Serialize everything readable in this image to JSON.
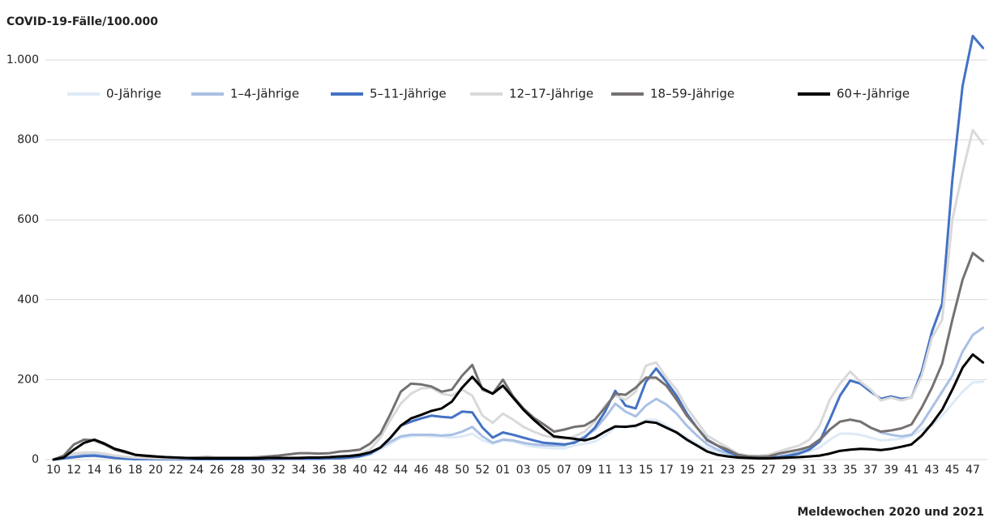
{
  "chart_data": {
    "type": "line",
    "y_label": "COVID-19-Fälle/100.000",
    "x_label": "Meldewochen 2020 und 2021",
    "categories": [
      "10",
      null,
      "12",
      null,
      "14",
      null,
      "16",
      null,
      "18",
      null,
      "20",
      null,
      "22",
      null,
      "24",
      null,
      "26",
      null,
      "28",
      null,
      "30",
      null,
      "32",
      null,
      "34",
      null,
      "36",
      null,
      "38",
      null,
      "40",
      null,
      "42",
      null,
      "44",
      null,
      "46",
      null,
      "48",
      null,
      "50",
      null,
      "52",
      null,
      "01",
      null,
      "03",
      null,
      "05",
      null,
      "07",
      null,
      "09",
      null,
      "11",
      null,
      "13",
      null,
      "15",
      null,
      "17",
      null,
      "19",
      null,
      "21",
      null,
      "23",
      null,
      "25",
      null,
      "27",
      null,
      "29",
      null,
      "31",
      null,
      "33",
      null,
      "35",
      null,
      "37",
      null,
      "39",
      null,
      "41",
      null,
      "43",
      null,
      "45",
      null,
      "47",
      null
    ],
    "ylim": [
      0,
      1000
    ],
    "yticks": [
      0,
      200,
      400,
      600,
      800,
      {
        "value": 1000,
        "label": "1.000"
      }
    ],
    "grid": true,
    "legend": "top",
    "series": [
      {
        "name": "0-Jährige",
        "color": "#deeaf6",
        "values": [
          0,
          2,
          5,
          8,
          8,
          6,
          4,
          3,
          2,
          2,
          1,
          1,
          1,
          1,
          1,
          1,
          1,
          1,
          1,
          1,
          1,
          1,
          1,
          2,
          2,
          2,
          2,
          3,
          4,
          6,
          8,
          12,
          25,
          40,
          55,
          58,
          60,
          58,
          58,
          55,
          58,
          65,
          48,
          40,
          48,
          45,
          38,
          32,
          30,
          28,
          28,
          35,
          40,
          45,
          60,
          80,
          85,
          80,
          100,
          100,
          85,
          70,
          55,
          40,
          28,
          20,
          12,
          8,
          5,
          5,
          5,
          8,
          10,
          15,
          20,
          30,
          50,
          65,
          65,
          62,
          55,
          48,
          50,
          52,
          60,
          75,
          85,
          110,
          140,
          170,
          193,
          195
        ]
      },
      {
        "name": "1–4-Jährige",
        "color": "#a9c0e4",
        "values": [
          0,
          3,
          8,
          12,
          12,
          9,
          6,
          4,
          3,
          2,
          2,
          2,
          2,
          2,
          2,
          2,
          2,
          2,
          2,
          2,
          2,
          2,
          2,
          3,
          3,
          3,
          3,
          4,
          5,
          7,
          10,
          15,
          30,
          45,
          58,
          62,
          62,
          62,
          60,
          62,
          70,
          82,
          58,
          42,
          50,
          48,
          42,
          38,
          36,
          35,
          35,
          45,
          58,
          75,
          105,
          140,
          120,
          108,
          135,
          152,
          138,
          115,
          85,
          60,
          38,
          25,
          15,
          8,
          5,
          5,
          5,
          8,
          12,
          18,
          28,
          45,
          75,
          95,
          100,
          95,
          80,
          68,
          62,
          58,
          62,
          90,
          130,
          170,
          210,
          270,
          312,
          330
        ]
      },
      {
        "name": "5–11-Jährige",
        "color": "#4472c4",
        "values": [
          0,
          3,
          6,
          9,
          10,
          7,
          4,
          2,
          1,
          1,
          1,
          1,
          1,
          1,
          1,
          1,
          1,
          1,
          1,
          1,
          1,
          1,
          2,
          2,
          2,
          2,
          2,
          3,
          3,
          5,
          8,
          15,
          30,
          55,
          85,
          95,
          103,
          110,
          107,
          105,
          120,
          118,
          80,
          55,
          68,
          62,
          55,
          48,
          42,
          40,
          38,
          42,
          55,
          80,
          120,
          172,
          135,
          128,
          195,
          228,
          195,
          160,
          115,
          80,
          50,
          35,
          20,
          10,
          6,
          5,
          5,
          6,
          10,
          15,
          25,
          45,
          100,
          160,
          198,
          190,
          170,
          152,
          158,
          152,
          155,
          220,
          320,
          390,
          700,
          935,
          1060,
          1030
        ]
      },
      {
        "name": "12–17-Jährige",
        "color": "#d9d9d9",
        "values": [
          0,
          8,
          15,
          18,
          18,
          15,
          10,
          7,
          5,
          4,
          3,
          3,
          3,
          3,
          3,
          3,
          3,
          3,
          3,
          3,
          3,
          3,
          4,
          4,
          5,
          5,
          5,
          6,
          8,
          10,
          15,
          25,
          55,
          100,
          140,
          165,
          178,
          180,
          165,
          160,
          175,
          160,
          110,
          92,
          115,
          100,
          82,
          70,
          60,
          55,
          52,
          58,
          70,
          95,
          135,
          160,
          150,
          170,
          235,
          243,
          205,
          175,
          130,
          95,
          60,
          45,
          30,
          15,
          10,
          10,
          12,
          20,
          28,
          35,
          50,
          85,
          150,
          190,
          220,
          195,
          175,
          148,
          155,
          148,
          155,
          210,
          305,
          350,
          600,
          720,
          825,
          790
        ]
      },
      {
        "name": "18–59-Jährige",
        "color": "#767171",
        "values": [
          0,
          10,
          38,
          50,
          48,
          38,
          25,
          18,
          12,
          9,
          7,
          6,
          5,
          4,
          5,
          6,
          5,
          5,
          5,
          5,
          6,
          8,
          10,
          13,
          16,
          16,
          15,
          16,
          20,
          22,
          25,
          40,
          65,
          115,
          170,
          190,
          188,
          183,
          170,
          175,
          210,
          237,
          175,
          165,
          200,
          158,
          128,
          105,
          88,
          70,
          75,
          82,
          85,
          100,
          130,
          165,
          162,
          180,
          205,
          205,
          185,
          150,
          110,
          80,
          48,
          35,
          25,
          12,
          8,
          7,
          8,
          15,
          20,
          25,
          32,
          50,
          75,
          95,
          100,
          95,
          80,
          70,
          73,
          78,
          88,
          130,
          180,
          240,
          350,
          450,
          517,
          497
        ]
      },
      {
        "name": "60+-Jährige",
        "color": "#000000",
        "values": [
          0,
          5,
          25,
          42,
          50,
          40,
          27,
          20,
          12,
          10,
          8,
          6,
          5,
          4,
          3,
          3,
          3,
          3,
          3,
          3,
          3,
          4,
          4,
          4,
          4,
          5,
          5,
          6,
          8,
          9,
          12,
          18,
          30,
          55,
          85,
          103,
          112,
          122,
          128,
          145,
          180,
          207,
          178,
          165,
          185,
          155,
          125,
          100,
          78,
          58,
          55,
          52,
          48,
          55,
          70,
          83,
          82,
          85,
          95,
          92,
          80,
          68,
          50,
          35,
          20,
          12,
          8,
          5,
          4,
          3,
          3,
          4,
          5,
          6,
          8,
          10,
          15,
          22,
          25,
          27,
          26,
          24,
          27,
          32,
          38,
          60,
          90,
          125,
          175,
          230,
          263,
          243
        ]
      }
    ]
  }
}
